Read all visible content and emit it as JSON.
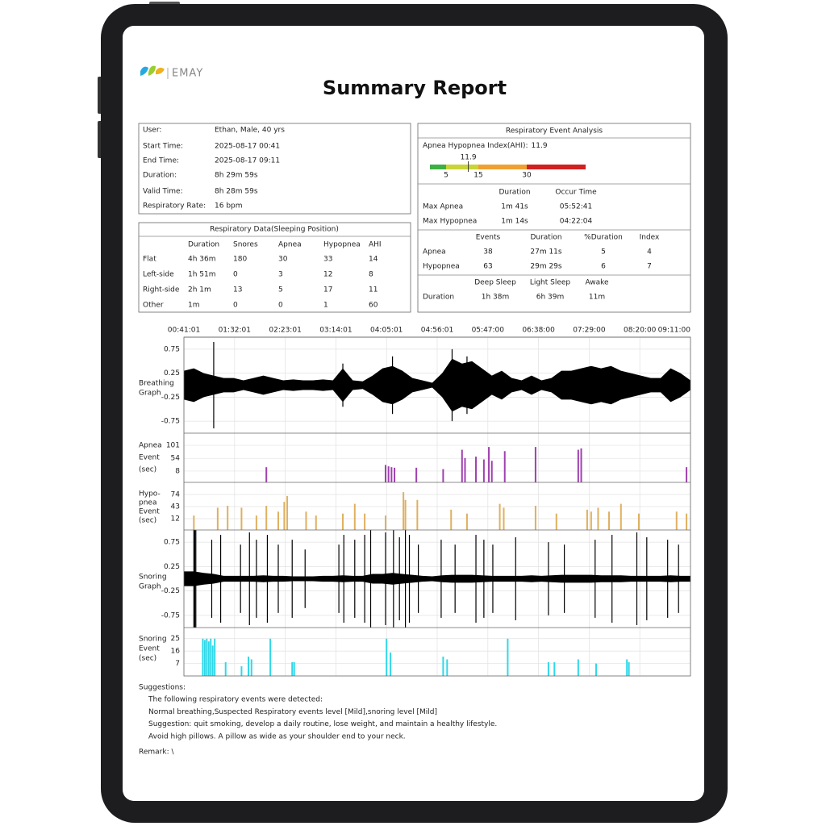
{
  "logo": "EMAY",
  "title": "Summary Report",
  "user_info": {
    "rows": [
      [
        "User:",
        "Ethan, Male, 40 yrs"
      ],
      [
        "Start Time:",
        "2025-08-17 00:41"
      ],
      [
        "End Time:",
        "2025-08-17 09:11"
      ],
      [
        "Duration:",
        "8h 29m 59s"
      ],
      [
        "Valid Time:",
        "8h 28m 59s"
      ],
      [
        "Respiratory Rate:",
        "16 bpm"
      ]
    ]
  },
  "sleeping_position": {
    "title": "Respiratory Data(Sleeping Position)",
    "columns": [
      "Duration",
      "Snores",
      "Apnea",
      "Hypopnea",
      "AHI"
    ],
    "rows": [
      [
        "Flat",
        "4h 36m",
        180,
        30,
        33,
        14
      ],
      [
        "Left-side",
        "1h 51m",
        0,
        3,
        12,
        8
      ],
      [
        "Right-side",
        "2h 1m",
        13,
        5,
        17,
        11
      ],
      [
        "Other",
        "1m",
        0,
        0,
        1,
        60
      ]
    ]
  },
  "event_analysis": {
    "title": "Respiratory Event Analysis",
    "ahi_label": "Apnea Hypopnea Index(AHI):",
    "ahi": 11.9,
    "ahi_levels": [
      5,
      15,
      30
    ],
    "ahi_colors": [
      "#3cb043",
      "#c9d436",
      "#f0a030",
      "#d02020"
    ],
    "max": {
      "columns": [
        "Duration",
        "Occur Time"
      ],
      "rows": [
        [
          "Max Apnea",
          "1m 41s",
          "05:52:41"
        ],
        [
          "Max Hypopnea",
          "1m 14s",
          "04:22:04"
        ]
      ]
    },
    "events": {
      "columns": [
        "Events",
        "Duration",
        "%Duration",
        "Index"
      ],
      "rows": [
        [
          "Apnea",
          38,
          "27m 11s",
          5,
          4
        ],
        [
          "Hypopnea",
          63,
          "29m 29s",
          6,
          7
        ]
      ]
    },
    "sleep": {
      "columns": [
        "Deep Sleep",
        "Light Sleep",
        "Awake"
      ],
      "rows": [
        [
          "Duration",
          "1h 38m",
          "6h 39m",
          "11m"
        ]
      ]
    }
  },
  "timeline": {
    "xlim": [
      0,
      510
    ],
    "xticks": [
      {
        "value": 0,
        "label": "00:41:01"
      },
      {
        "value": 51,
        "label": "01:32:01"
      },
      {
        "value": 102,
        "label": "02:23:01"
      },
      {
        "value": 153,
        "label": "03:14:01"
      },
      {
        "value": 204,
        "label": "04:05:01"
      },
      {
        "value": 255,
        "label": "04:56:01"
      },
      {
        "value": 306,
        "label": "05:47:00"
      },
      {
        "value": 357,
        "label": "06:38:00"
      },
      {
        "value": 408,
        "label": "07:29:00"
      },
      {
        "value": 459,
        "label": "08:20:00"
      },
      {
        "value": 510,
        "label": "09:11:00"
      }
    ]
  },
  "panels": [
    {
      "type": "waveform",
      "label": [
        "Breathing",
        "Graph"
      ],
      "ylim": [
        -1,
        1
      ],
      "yticks": [
        0.75,
        0.25,
        -0.25,
        -0.75
      ],
      "color": "#000000",
      "envelope": {
        "x": [
          0,
          10,
          20,
          30,
          40,
          50,
          60,
          70,
          80,
          90,
          100,
          110,
          120,
          130,
          140,
          150,
          160,
          170,
          180,
          190,
          200,
          210,
          220,
          230,
          240,
          250,
          260,
          270,
          280,
          290,
          300,
          310,
          320,
          330,
          340,
          350,
          360,
          370,
          380,
          390,
          400,
          410,
          420,
          430,
          440,
          450,
          460,
          470,
          480,
          490,
          500,
          510
        ],
        "values": [
          0.3,
          0.35,
          0.25,
          0.2,
          0.15,
          0.15,
          0.1,
          0.15,
          0.2,
          0.15,
          0.1,
          0.12,
          0.1,
          0.1,
          0.12,
          0.1,
          0.35,
          0.1,
          0.08,
          0.2,
          0.35,
          0.4,
          0.3,
          0.15,
          0.1,
          0.05,
          0.25,
          0.55,
          0.45,
          0.5,
          0.35,
          0.2,
          0.3,
          0.15,
          0.1,
          0.2,
          0.1,
          0.15,
          0.3,
          0.3,
          0.35,
          0.4,
          0.35,
          0.4,
          0.3,
          0.25,
          0.2,
          0.15,
          0.15,
          0.35,
          0.25,
          0.1
        ]
      },
      "spikes": {
        "x": [
          30,
          160,
          210,
          270,
          285
        ],
        "values": [
          0.9,
          0.45,
          0.6,
          0.75,
          0.6
        ]
      }
    },
    {
      "type": "events",
      "label": [
        "Apnea",
        "Event",
        "(sec)"
      ],
      "ylim": [
        -33,
        145
      ],
      "yticks": [
        101,
        54,
        8
      ],
      "color": "#a040b0",
      "events": {
        "x": [
          83,
          203,
          206,
          209,
          212,
          234,
          261,
          280,
          283,
          294,
          302,
          307,
          310,
          323,
          354,
          397,
          400,
          506
        ],
        "values": [
          22,
          30,
          25,
          22,
          20,
          20,
          15,
          85,
          55,
          60,
          50,
          95,
          45,
          80,
          95,
          85,
          90,
          22
        ]
      }
    },
    {
      "type": "events",
      "label": [
        "Hypo-",
        "pnea",
        "Event",
        "(sec)"
      ],
      "ylim": [
        -17,
        105
      ],
      "yticks": [
        74,
        43,
        12
      ],
      "color": "#e0b060",
      "events": {
        "x": [
          10,
          34,
          44,
          58,
          73,
          83,
          95,
          101,
          104,
          123,
          133,
          160,
          172,
          182,
          203,
          221,
          223,
          235,
          269,
          285,
          318,
          322,
          354,
          375,
          406,
          410,
          417,
          428,
          440,
          458,
          496,
          506
        ],
        "values": [
          20,
          40,
          45,
          40,
          20,
          45,
          30,
          55,
          70,
          30,
          20,
          25,
          50,
          25,
          20,
          80,
          60,
          60,
          35,
          25,
          50,
          40,
          45,
          25,
          35,
          30,
          40,
          30,
          50,
          25,
          30,
          25
        ]
      }
    },
    {
      "type": "waveform",
      "label": [
        "Snoring",
        "Graph"
      ],
      "ylim": [
        -1,
        1
      ],
      "yticks": [
        0.75,
        0.25,
        -0.25,
        -0.75
      ],
      "color": "#000000",
      "envelope": {
        "x": [
          0,
          10,
          20,
          30,
          40,
          50,
          60,
          70,
          80,
          90,
          100,
          110,
          120,
          130,
          140,
          150,
          160,
          170,
          180,
          190,
          200,
          210,
          220,
          230,
          240,
          250,
          260,
          270,
          280,
          290,
          300,
          310,
          320,
          330,
          340,
          350,
          360,
          370,
          380,
          390,
          400,
          410,
          420,
          430,
          440,
          450,
          460,
          470,
          480,
          490,
          500,
          510
        ],
        "values": [
          0.15,
          0.15,
          0.12,
          0.1,
          0.06,
          0.06,
          0.06,
          0.06,
          0.07,
          0.06,
          0.06,
          0.05,
          0.05,
          0.05,
          0.06,
          0.06,
          0.07,
          0.06,
          0.06,
          0.1,
          0.1,
          0.12,
          0.1,
          0.08,
          0.06,
          0.05,
          0.07,
          0.08,
          0.08,
          0.08,
          0.07,
          0.06,
          0.06,
          0.06,
          0.06,
          0.07,
          0.06,
          0.07,
          0.08,
          0.08,
          0.08,
          0.08,
          0.07,
          0.07,
          0.07,
          0.06,
          0.06,
          0.06,
          0.06,
          0.07,
          0.06,
          0.06
        ]
      },
      "spikes": {
        "x": [
          10,
          11,
          12,
          28,
          37,
          57,
          66,
          73,
          84,
          95,
          109,
          122,
          156,
          161,
          172,
          182,
          188,
          203,
          211,
          217,
          223,
          227,
          236,
          259,
          273,
          294,
          302,
          311,
          334,
          367,
          383,
          414,
          431,
          456,
          466,
          487,
          498
        ],
        "values": [
          1,
          1,
          1,
          0.8,
          0.9,
          0.7,
          0.95,
          0.8,
          0.9,
          0.7,
          0.8,
          0.6,
          0.7,
          0.9,
          0.8,
          0.9,
          1,
          0.95,
          1,
          0.85,
          1,
          0.9,
          0.7,
          0.8,
          0.7,
          0.9,
          0.8,
          0.7,
          0.85,
          0.75,
          0.7,
          0.8,
          0.9,
          0.95,
          0.85,
          0.8,
          0.7
        ]
      }
    },
    {
      "type": "events",
      "label": [
        "Snoring",
        "Event",
        "(sec)"
      ],
      "ylim": [
        -2,
        33
      ],
      "yticks": [
        25,
        16,
        7
      ],
      "color": "#30d8e8",
      "events": {
        "x": [
          19,
          21,
          23,
          25,
          27,
          29,
          31,
          42,
          58,
          65,
          68,
          87,
          109,
          111,
          204,
          208,
          261,
          265,
          326,
          367,
          373,
          397,
          415,
          446,
          448
        ],
        "values": [
          25,
          24,
          25,
          23,
          25,
          20,
          25,
          8,
          5,
          12,
          10,
          25,
          8,
          8,
          25,
          15,
          12,
          10,
          25,
          8,
          8,
          10,
          7,
          10,
          8
        ]
      }
    }
  ],
  "suggestions": {
    "title": "Suggestions:",
    "lines": [
      "The following respiratory events were detected:",
      "Normal breathing,Suspected Respiratory events level [Mild],snoring level [Mild]",
      "Suggestion: quit smoking, develop a daily routine, lose weight, and maintain a healthy lifestyle.",
      "Avoid high pillows. A pillow as wide as your shoulder end to your neck."
    ]
  },
  "remark": "Remark: \\"
}
